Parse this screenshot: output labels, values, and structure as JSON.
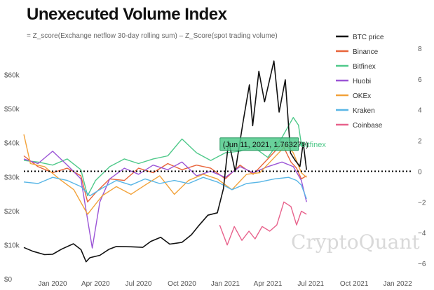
{
  "chart_data": {
    "type": "line",
    "title": "Unexecuted Volume Index",
    "subtitle": "= Z_score(Exchange netflow 30-day rolling sum) – Z_Score(spot trading volume)",
    "watermark": "CryptoQuant",
    "x_range": [
      "2019-11-01",
      "2022-02-10"
    ],
    "x_ticks": [
      "Jan 2020",
      "Apr 2020",
      "Jul 2020",
      "Oct 2020",
      "Jan 2021",
      "Apr 2021",
      "Jul 2021",
      "Oct 2021",
      "Jan 2022"
    ],
    "y_left": {
      "ticks": [
        "$0",
        "$10k",
        "$20k",
        "$30k",
        "$40k",
        "$50k",
        "$60k"
      ],
      "range": [
        0,
        70000
      ]
    },
    "y_right": {
      "ticks": [
        "8",
        "6",
        "4",
        "2",
        "0",
        "−2",
        "−4",
        "−6"
      ],
      "range": [
        -7,
        8.5
      ]
    },
    "zero_line": {
      "style": "dotted",
      "color": "#000000"
    },
    "grid": false,
    "legend_position": "top-right",
    "tooltip": {
      "text": "(Jun 11, 2021, 1.763279)",
      "series": "Bitfinex",
      "date": "2021-06-11",
      "value": 1.763279
    },
    "series": [
      {
        "name": "BTC price",
        "axis": "left",
        "color": "#111111",
        "points": [
          [
            "2019-11-01",
            9200
          ],
          [
            "2019-11-20",
            8100
          ],
          [
            "2019-12-15",
            7100
          ],
          [
            "2020-01-01",
            7200
          ],
          [
            "2020-01-20",
            8700
          ],
          [
            "2020-02-14",
            10300
          ],
          [
            "2020-03-01",
            8600
          ],
          [
            "2020-03-12",
            5000
          ],
          [
            "2020-03-20",
            6200
          ],
          [
            "2020-04-10",
            6900
          ],
          [
            "2020-04-30",
            8700
          ],
          [
            "2020-05-15",
            9500
          ],
          [
            "2020-06-15",
            9400
          ],
          [
            "2020-07-10",
            9250
          ],
          [
            "2020-07-27",
            11000
          ],
          [
            "2020-08-17",
            12200
          ],
          [
            "2020-09-05",
            10200
          ],
          [
            "2020-10-01",
            10700
          ],
          [
            "2020-10-21",
            12900
          ],
          [
            "2020-11-05",
            15500
          ],
          [
            "2020-11-25",
            18700
          ],
          [
            "2020-12-15",
            19400
          ],
          [
            "2020-12-28",
            26500
          ],
          [
            "2021-01-08",
            40500
          ],
          [
            "2021-01-22",
            31500
          ],
          [
            "2021-02-08",
            46500
          ],
          [
            "2021-02-21",
            57000
          ],
          [
            "2021-02-28",
            45000
          ],
          [
            "2021-03-13",
            61000
          ],
          [
            "2021-03-25",
            52000
          ],
          [
            "2021-04-14",
            64000
          ],
          [
            "2021-04-25",
            49000
          ],
          [
            "2021-05-08",
            58500
          ],
          [
            "2021-05-19",
            37000
          ],
          [
            "2021-05-28",
            35000
          ],
          [
            "2021-06-08",
            33000
          ],
          [
            "2021-06-15",
            40000
          ],
          [
            "2021-06-22",
            32000
          ]
        ]
      },
      {
        "name": "Binance",
        "axis": "right",
        "color": "#e8643a",
        "points": [
          [
            "2019-11-01",
            1.0
          ],
          [
            "2019-12-01",
            0.3
          ],
          [
            "2020-01-01",
            -0.1
          ],
          [
            "2020-02-01",
            0.2
          ],
          [
            "2020-03-01",
            -0.3
          ],
          [
            "2020-03-15",
            -2.0
          ],
          [
            "2020-04-01",
            -1.4
          ],
          [
            "2020-05-01",
            -0.5
          ],
          [
            "2020-06-01",
            -0.6
          ],
          [
            "2020-07-01",
            0.2
          ],
          [
            "2020-08-01",
            -0.1
          ],
          [
            "2020-09-01",
            0.5
          ],
          [
            "2020-10-01",
            0.1
          ],
          [
            "2020-11-01",
            0.4
          ],
          [
            "2020-12-01",
            0.2
          ],
          [
            "2021-01-01",
            -0.5
          ],
          [
            "2021-02-01",
            0.4
          ],
          [
            "2021-03-01",
            -0.2
          ],
          [
            "2021-04-01",
            0.8
          ],
          [
            "2021-05-01",
            1.8
          ],
          [
            "2021-05-20",
            0.6
          ],
          [
            "2021-06-01",
            0.2
          ],
          [
            "2021-06-11",
            -0.5
          ],
          [
            "2021-06-22",
            -0.3
          ]
        ]
      },
      {
        "name": "Bitfinex",
        "axis": "right",
        "color": "#4fc98a",
        "points": [
          [
            "2019-11-01",
            0.7
          ],
          [
            "2019-12-01",
            0.6
          ],
          [
            "2020-01-01",
            0.4
          ],
          [
            "2020-02-01",
            0.8
          ],
          [
            "2020-03-01",
            0.1
          ],
          [
            "2020-03-15",
            -1.6
          ],
          [
            "2020-04-01",
            -0.6
          ],
          [
            "2020-05-01",
            0.3
          ],
          [
            "2020-06-01",
            0.8
          ],
          [
            "2020-07-01",
            0.5
          ],
          [
            "2020-08-01",
            0.8
          ],
          [
            "2020-09-01",
            1.0
          ],
          [
            "2020-10-01",
            2.1
          ],
          [
            "2020-11-01",
            1.2
          ],
          [
            "2020-12-01",
            0.7
          ],
          [
            "2021-01-01",
            1.2
          ],
          [
            "2021-02-01",
            1.3
          ],
          [
            "2021-03-01",
            1.6
          ],
          [
            "2021-04-01",
            0.9
          ],
          [
            "2021-05-01",
            2.2
          ],
          [
            "2021-05-25",
            3.5
          ],
          [
            "2021-06-05",
            3.0
          ],
          [
            "2021-06-11",
            1.763279
          ]
        ]
      },
      {
        "name": "Huobi",
        "axis": "right",
        "color": "#9b55d6",
        "points": [
          [
            "2019-11-01",
            0.8
          ],
          [
            "2019-12-01",
            0.5
          ],
          [
            "2020-01-01",
            1.3
          ],
          [
            "2020-02-01",
            0.4
          ],
          [
            "2020-03-01",
            -0.5
          ],
          [
            "2020-03-25",
            -5.0
          ],
          [
            "2020-04-10",
            -2.0
          ],
          [
            "2020-05-01",
            -0.5
          ],
          [
            "2020-06-01",
            0.2
          ],
          [
            "2020-07-01",
            -0.2
          ],
          [
            "2020-08-01",
            0.4
          ],
          [
            "2020-09-01",
            0.1
          ],
          [
            "2020-10-01",
            0.6
          ],
          [
            "2020-11-01",
            -0.3
          ],
          [
            "2020-12-01",
            0.0
          ],
          [
            "2021-01-01",
            -0.4
          ],
          [
            "2021-02-01",
            0.3
          ],
          [
            "2021-03-01",
            -0.1
          ],
          [
            "2021-04-01",
            0.3
          ],
          [
            "2021-05-01",
            0.6
          ],
          [
            "2021-05-25",
            0.3
          ],
          [
            "2021-06-11",
            -0.6
          ],
          [
            "2021-06-22",
            -2.0
          ]
        ]
      },
      {
        "name": "OKEx",
        "axis": "right",
        "color": "#f2a23a",
        "points": [
          [
            "2019-11-01",
            2.4
          ],
          [
            "2019-11-15",
            0.5
          ],
          [
            "2019-12-15",
            0.3
          ],
          [
            "2020-01-15",
            -0.5
          ],
          [
            "2020-02-15",
            -1.2
          ],
          [
            "2020-03-15",
            -2.8
          ],
          [
            "2020-04-15",
            -1.6
          ],
          [
            "2020-05-15",
            -1.0
          ],
          [
            "2020-06-15",
            -1.5
          ],
          [
            "2020-07-15",
            -0.9
          ],
          [
            "2020-08-15",
            -0.3
          ],
          [
            "2020-09-15",
            -1.5
          ],
          [
            "2020-10-15",
            -0.6
          ],
          [
            "2020-11-15",
            -0.2
          ],
          [
            "2020-12-15",
            -0.5
          ],
          [
            "2021-01-15",
            -1.2
          ],
          [
            "2021-02-15",
            -0.2
          ],
          [
            "2021-03-15",
            -0.1
          ],
          [
            "2021-04-15",
            0.9
          ],
          [
            "2021-05-10",
            1.7
          ],
          [
            "2021-05-25",
            1.2
          ],
          [
            "2021-06-11",
            -0.1
          ],
          [
            "2021-06-22",
            -0.4
          ]
        ]
      },
      {
        "name": "Kraken",
        "axis": "right",
        "color": "#59b6e6",
        "points": [
          [
            "2019-11-01",
            -0.7
          ],
          [
            "2019-12-01",
            -0.8
          ],
          [
            "2020-01-01",
            -0.4
          ],
          [
            "2020-02-01",
            -0.6
          ],
          [
            "2020-03-01",
            -1.0
          ],
          [
            "2020-03-20",
            -1.6
          ],
          [
            "2020-04-15",
            -1.1
          ],
          [
            "2020-05-15",
            -0.6
          ],
          [
            "2020-06-15",
            -0.9
          ],
          [
            "2020-07-15",
            -0.5
          ],
          [
            "2020-08-15",
            -0.8
          ],
          [
            "2020-09-15",
            -0.6
          ],
          [
            "2020-10-15",
            -0.8
          ],
          [
            "2020-11-15",
            -0.4
          ],
          [
            "2020-12-15",
            -0.7
          ],
          [
            "2021-01-15",
            -1.2
          ],
          [
            "2021-02-15",
            -0.8
          ],
          [
            "2021-03-15",
            -0.7
          ],
          [
            "2021-04-15",
            -0.5
          ],
          [
            "2021-05-15",
            -0.4
          ],
          [
            "2021-06-01",
            -0.6
          ],
          [
            "2021-06-11",
            -0.9
          ],
          [
            "2021-06-22",
            -1.8
          ]
        ]
      },
      {
        "name": "Coinbase",
        "axis": "right",
        "color": "#e8628c",
        "points": [
          [
            "2020-12-20",
            -3.5
          ],
          [
            "2021-01-05",
            -4.8
          ],
          [
            "2021-01-20",
            -3.6
          ],
          [
            "2021-02-05",
            -4.5
          ],
          [
            "2021-02-20",
            -3.9
          ],
          [
            "2021-03-05",
            -4.4
          ],
          [
            "2021-03-20",
            -3.6
          ],
          [
            "2021-04-05",
            -3.9
          ],
          [
            "2021-04-20",
            -3.5
          ],
          [
            "2021-05-05",
            -2.0
          ],
          [
            "2021-05-20",
            -2.3
          ],
          [
            "2021-06-01",
            -3.5
          ],
          [
            "2021-06-11",
            -2.6
          ],
          [
            "2021-06-22",
            -2.8
          ]
        ]
      }
    ]
  }
}
